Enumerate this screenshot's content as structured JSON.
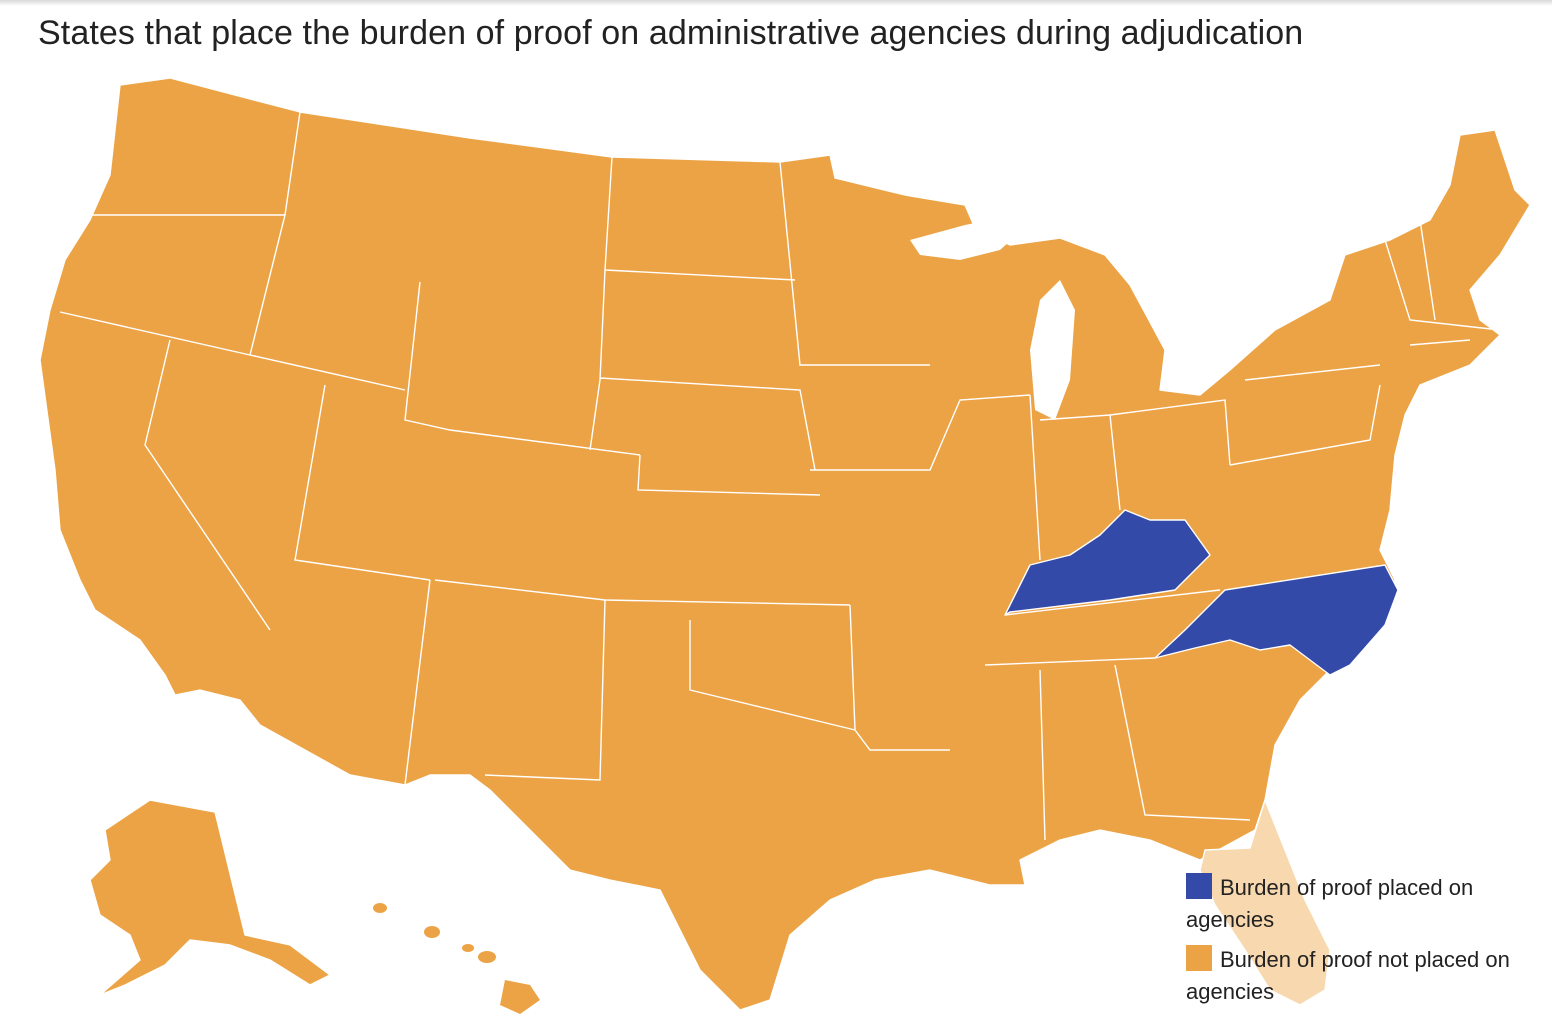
{
  "title": "States that place the burden of proof on administrative agencies during adjudication",
  "colors": {
    "placed": "#344aa8",
    "not_placed": "#eca345",
    "hover_highlight": "#f8d8ae",
    "border": "#ffffff"
  },
  "legend": [
    {
      "key": "placed",
      "label": "Burden of proof placed on agencies"
    },
    {
      "key": "not_placed",
      "label": "Burden of proof not placed on agencies"
    }
  ],
  "states_burden_placed": [
    "Kentucky",
    "North Carolina"
  ],
  "highlighted_state": "Florida"
}
